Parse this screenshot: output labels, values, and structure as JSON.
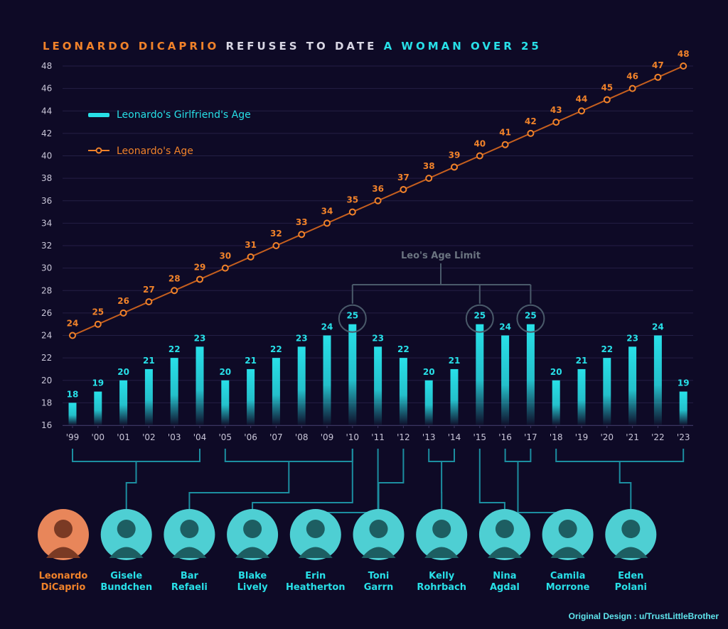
{
  "title": {
    "part1": "LEONARDO DICAPRIO",
    "part2": " REFUSES TO DATE ",
    "part3": "A WOMAN OVER 25"
  },
  "legend": {
    "girlfriend": "Leonardo's Girlfriend's Age",
    "leo": "Leonardo's Age"
  },
  "age_limit_label": "Leo's Age Limit",
  "credit": "Original Design : u/TrustLittleBrother",
  "colors": {
    "background": "#0e0a26",
    "bar": "#28e0e8",
    "leo": "#f0822a",
    "limit": "#4a5a6a",
    "grid": "#241f45"
  },
  "chart_data": {
    "type": "bar+line",
    "categories": [
      "'99",
      "'00",
      "'01",
      "'02",
      "'03",
      "'04",
      "'05",
      "'06",
      "'07",
      "'08",
      "'09",
      "'10",
      "'11",
      "'12",
      "'13",
      "'14",
      "'15",
      "'16",
      "'17",
      "'18",
      "'19",
      "'20",
      "'21",
      "'22",
      "'23"
    ],
    "series": [
      {
        "name": "Leonardo's Girlfriend's Age",
        "type": "bar",
        "values": [
          18,
          19,
          20,
          21,
          22,
          23,
          20,
          21,
          22,
          23,
          24,
          25,
          23,
          22,
          20,
          21,
          25,
          24,
          25,
          20,
          21,
          22,
          23,
          24,
          19
        ]
      },
      {
        "name": "Leonardo's Age",
        "type": "line",
        "values": [
          24,
          25,
          26,
          27,
          28,
          29,
          30,
          31,
          32,
          33,
          34,
          35,
          36,
          37,
          38,
          39,
          40,
          41,
          42,
          43,
          44,
          45,
          46,
          47,
          48
        ]
      }
    ],
    "y_ticks": [
      16,
      18,
      20,
      22,
      24,
      26,
      28,
      30,
      32,
      34,
      36,
      38,
      40,
      42,
      44,
      46,
      48
    ],
    "ylim": [
      16,
      48
    ],
    "grid": true,
    "legend_position": "top-left",
    "age_limit_circled_indices": [
      11,
      16,
      18
    ],
    "bar_colored_labels_at_limit": 25
  },
  "people": [
    {
      "first": "Leonardo",
      "last": "DiCaprio",
      "highlight": true,
      "range": [
        0,
        0
      ]
    },
    {
      "first": "Gisele",
      "last": "Bundchen",
      "range": [
        0,
        5
      ]
    },
    {
      "first": "Bar",
      "last": "Refaeli",
      "range": [
        6,
        11
      ]
    },
    {
      "first": "Blake",
      "last": "Lively",
      "range": [
        11,
        11
      ]
    },
    {
      "first": "Erin",
      "last": "Heatherton",
      "range": [
        12,
        12
      ]
    },
    {
      "first": "Toni",
      "last": "Garrn",
      "range": [
        13,
        13
      ]
    },
    {
      "first": "Kelly",
      "last": "Rohrbach",
      "range": [
        14,
        15
      ]
    },
    {
      "first": "Nina",
      "last": "Agdal",
      "range": [
        16,
        16
      ]
    },
    {
      "first": "Camila",
      "last": "Morrone",
      "range": [
        17,
        18
      ]
    },
    {
      "first": "Eden",
      "last": "Polani",
      "range": [
        19,
        24
      ]
    }
  ]
}
